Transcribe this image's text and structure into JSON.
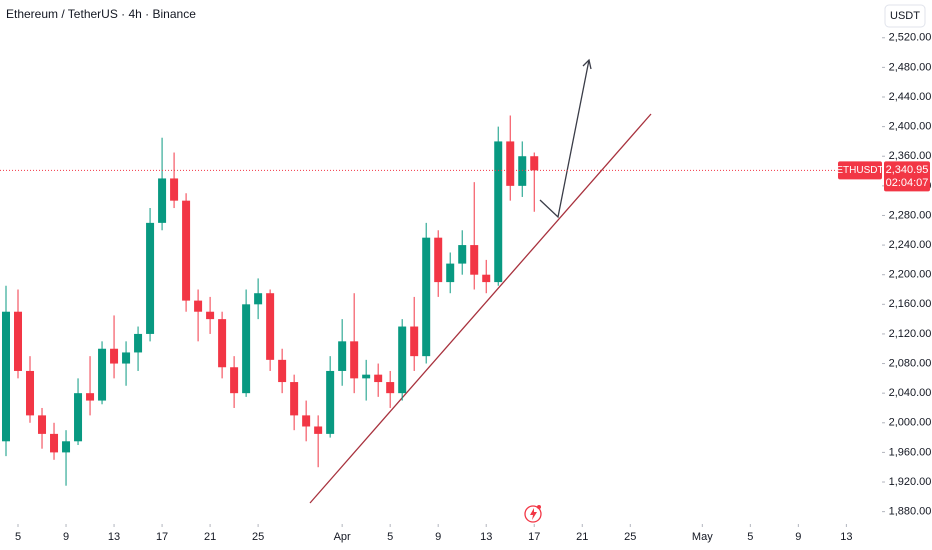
{
  "chart_data": {
    "type": "candlestick",
    "title": "Ethereum / TetherUS · 4h · Binance",
    "currency": "USDT",
    "symbol": "ETHUSDT",
    "countdown": "02:04:07",
    "last_price": {
      "value": 2340.95,
      "label": "2,340.95"
    },
    "up_color": "#089981",
    "down_color": "#f23645",
    "x": [
      4,
      5,
      6,
      7,
      8,
      9,
      10,
      11,
      12,
      13,
      14,
      15,
      16,
      17,
      18,
      19,
      20,
      21,
      22,
      23,
      24,
      25,
      26,
      27,
      28,
      29,
      30,
      31,
      32,
      33,
      34,
      35,
      36,
      37,
      38,
      39,
      40,
      41,
      42,
      43,
      44,
      45,
      46,
      47,
      48
    ],
    "open": [
      1975,
      2150,
      2070,
      2010,
      1985,
      1960,
      1975,
      2040,
      2030,
      2100,
      2080,
      2095,
      2120,
      2270,
      2330,
      2300,
      2165,
      2150,
      2140,
      2075,
      2040,
      2160,
      2175,
      2085,
      2055,
      2010,
      1995,
      1985,
      2070,
      2110,
      2060,
      2065,
      2055,
      2040,
      2130,
      2090,
      2250,
      2190,
      2215,
      2240,
      2200,
      2190,
      2380,
      2320,
      2360
    ],
    "high": [
      2185,
      2180,
      2090,
      2020,
      2000,
      1990,
      2060,
      2090,
      2110,
      2145,
      2110,
      2130,
      2290,
      2385,
      2365,
      2310,
      2180,
      2170,
      2150,
      2090,
      2180,
      2195,
      2180,
      2100,
      2065,
      2030,
      2010,
      2090,
      2140,
      2175,
      2085,
      2080,
      2070,
      2140,
      2170,
      2270,
      2260,
      2230,
      2260,
      2325,
      2220,
      2400,
      2415,
      2380,
      2365
    ],
    "low": [
      1955,
      2060,
      2000,
      1965,
      1950,
      1915,
      1970,
      2010,
      2025,
      2060,
      2050,
      2070,
      2110,
      2260,
      2290,
      2150,
      2110,
      2120,
      2060,
      2020,
      2035,
      2140,
      2070,
      2040,
      1990,
      1975,
      1940,
      1980,
      2050,
      2040,
      2030,
      2035,
      2020,
      2030,
      2070,
      2080,
      2170,
      2175,
      2200,
      2180,
      2175,
      2185,
      2300,
      2305,
      2285
    ],
    "close": [
      2150,
      2070,
      2010,
      1985,
      1960,
      1975,
      2040,
      2030,
      2100,
      2080,
      2095,
      2120,
      2270,
      2330,
      2300,
      2165,
      2150,
      2140,
      2075,
      2040,
      2160,
      2175,
      2085,
      2055,
      2010,
      1995,
      1985,
      2070,
      2110,
      2060,
      2065,
      2055,
      2040,
      2130,
      2090,
      2250,
      2190,
      2215,
      2240,
      2200,
      2190,
      2380,
      2320,
      2360,
      2340.95
    ],
    "xlim": [
      3.5,
      76.8
    ],
    "xticks": [
      {
        "value": 5,
        "label": "5"
      },
      {
        "value": 9,
        "label": "9"
      },
      {
        "value": 13,
        "label": "13"
      },
      {
        "value": 17,
        "label": "17"
      },
      {
        "value": 21,
        "label": "21"
      },
      {
        "value": 25,
        "label": "25"
      },
      {
        "value": 32,
        "label": "Apr"
      },
      {
        "value": 36,
        "label": "5"
      },
      {
        "value": 40,
        "label": "9"
      },
      {
        "value": 44,
        "label": "13"
      },
      {
        "value": 48,
        "label": "17"
      },
      {
        "value": 52,
        "label": "21"
      },
      {
        "value": 56,
        "label": "25"
      },
      {
        "value": 62,
        "label": "May"
      },
      {
        "value": 66,
        "label": "5"
      },
      {
        "value": 70,
        "label": "9"
      },
      {
        "value": 74,
        "label": "13"
      }
    ],
    "ylim": [
      1866,
      2571
    ],
    "yticks": [
      {
        "value": 1880,
        "label": "1,880.00"
      },
      {
        "value": 1920,
        "label": "1,920.00"
      },
      {
        "value": 1960,
        "label": "1,960.00"
      },
      {
        "value": 2000,
        "label": "2,000.00"
      },
      {
        "value": 2040,
        "label": "2,040.00"
      },
      {
        "value": 2080,
        "label": "2,080.00"
      },
      {
        "value": 2120,
        "label": "2,120.00"
      },
      {
        "value": 2160,
        "label": "2,160.00"
      },
      {
        "value": 2200,
        "label": "2,200.00"
      },
      {
        "value": 2240,
        "label": "2,240.00"
      },
      {
        "value": 2280,
        "label": "2,280.00"
      },
      {
        "value": 2320,
        "label": "2,320.00"
      },
      {
        "value": 2360,
        "label": "2,360.00"
      },
      {
        "value": 2400,
        "label": "2,400.00"
      },
      {
        "value": 2440,
        "label": "2,440.00"
      },
      {
        "value": 2480,
        "label": "2,480.00"
      },
      {
        "value": 2520,
        "label": "2,520.00"
      }
    ]
  }
}
